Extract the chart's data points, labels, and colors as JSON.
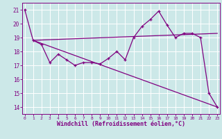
{
  "background_color": "#cce8e8",
  "grid_color": "#ffffff",
  "line_color": "#800080",
  "xlabel": "Windchill (Refroidissement éolien,°C)",
  "xlabel_fontsize": 6.0,
  "yticks": [
    14,
    15,
    16,
    17,
    18,
    19,
    20,
    21
  ],
  "xticks": [
    0,
    1,
    2,
    3,
    4,
    5,
    6,
    7,
    8,
    9,
    10,
    11,
    12,
    13,
    14,
    15,
    16,
    17,
    18,
    19,
    20,
    21,
    22,
    23
  ],
  "xlim": [
    -0.3,
    23.3
  ],
  "ylim": [
    13.5,
    21.5
  ],
  "series1_x": [
    0,
    1,
    2,
    3,
    4,
    5,
    6,
    7,
    8,
    9,
    10,
    11,
    12,
    13,
    14,
    15,
    16,
    17,
    18,
    19,
    20,
    21,
    22,
    23
  ],
  "series1_y": [
    21.0,
    18.8,
    18.5,
    17.2,
    17.8,
    17.4,
    17.0,
    17.2,
    17.2,
    17.1,
    17.5,
    18.0,
    17.4,
    19.0,
    19.8,
    20.3,
    20.9,
    19.9,
    19.0,
    19.3,
    19.3,
    19.0,
    15.0,
    14.0
  ],
  "series2_x": [
    1,
    23
  ],
  "series2_y": [
    18.8,
    19.3
  ],
  "series3_x": [
    1,
    23
  ],
  "series3_y": [
    18.8,
    14.0
  ]
}
